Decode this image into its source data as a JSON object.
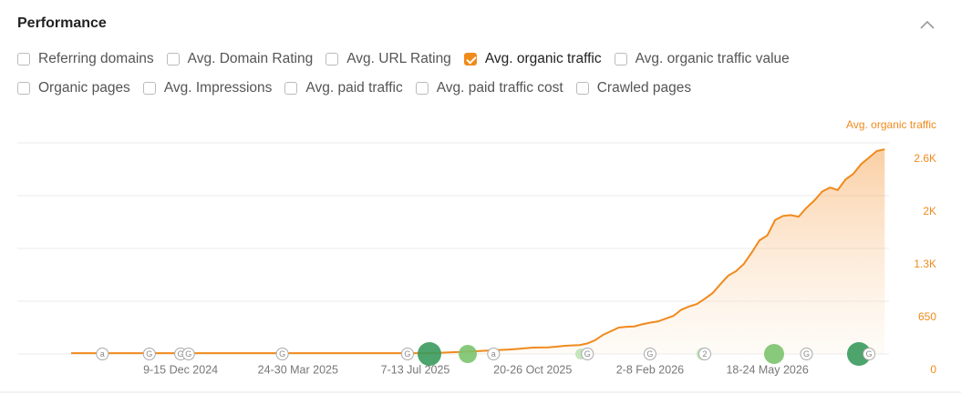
{
  "header": {
    "title": "Performance"
  },
  "metrics": [
    [
      {
        "label": "Referring domains",
        "checked": false
      },
      {
        "label": "Avg. Domain Rating",
        "checked": false
      },
      {
        "label": "Avg. URL Rating",
        "checked": false
      },
      {
        "label": "Avg. organic traffic",
        "checked": true
      },
      {
        "label": "Avg. organic traffic value",
        "checked": false
      }
    ],
    [
      {
        "label": "Organic pages",
        "checked": false
      },
      {
        "label": "Avg. Impressions",
        "checked": false
      },
      {
        "label": "Avg. paid traffic",
        "checked": false
      },
      {
        "label": "Avg. paid traffic cost",
        "checked": false
      },
      {
        "label": "Crawled pages",
        "checked": false
      }
    ]
  ],
  "chart_data": {
    "type": "area",
    "y_label": "Avg. organic traffic",
    "color": "#f08a1c",
    "grid": true,
    "ylim": [
      0,
      2600
    ],
    "yticks": [
      0,
      650,
      {
        "value": 1300,
        "label": "1.3K"
      },
      {
        "value": 1950,
        "label": "2K"
      },
      {
        "value": 2600,
        "label": "2.6K"
      }
    ],
    "categories": [
      null,
      null,
      null,
      null,
      null,
      null,
      null,
      null,
      null,
      null,
      null,
      null,
      null,
      null,
      "9-15 Dec 2024",
      null,
      null,
      null,
      null,
      null,
      null,
      null,
      null,
      null,
      null,
      null,
      null,
      null,
      null,
      "24-30 Mar 2025",
      null,
      null,
      null,
      null,
      null,
      null,
      null,
      null,
      null,
      null,
      null,
      null,
      null,
      null,
      "7-13 Jul 2025",
      null,
      null,
      null,
      null,
      null,
      null,
      null,
      null,
      null,
      null,
      null,
      null,
      null,
      null,
      "20-26 Oct 2025",
      null,
      null,
      null,
      null,
      null,
      null,
      null,
      null,
      null,
      null,
      null,
      null,
      null,
      null,
      "2-8 Feb 2026",
      null,
      null,
      null,
      null,
      null,
      null,
      null,
      null,
      null,
      null,
      null,
      null,
      null,
      null,
      "18-24 May 2026",
      null,
      null,
      null,
      null,
      null,
      null,
      null,
      null,
      null,
      null,
      null,
      null,
      null,
      null,
      null
    ],
    "values": [
      10,
      10,
      10,
      10,
      10,
      10,
      10,
      10,
      10,
      10,
      10,
      10,
      10,
      10,
      10,
      10,
      10,
      10,
      10,
      10,
      10,
      10,
      10,
      10,
      10,
      10,
      10,
      10,
      10,
      10,
      10,
      10,
      10,
      10,
      10,
      10,
      10,
      10,
      10,
      10,
      10,
      10,
      10,
      10,
      10,
      10,
      12,
      15,
      18,
      22,
      26,
      30,
      35,
      40,
      45,
      50,
      55,
      62,
      70,
      78,
      80,
      82,
      90,
      100,
      105,
      110,
      130,
      170,
      235,
      280,
      325,
      335,
      340,
      365,
      385,
      400,
      435,
      470,
      545,
      585,
      615,
      680,
      750,
      860,
      965,
      1020,
      1110,
      1250,
      1400,
      1460,
      1650,
      1700,
      1710,
      1690,
      1800,
      1890,
      2000,
      2050,
      2020,
      2150,
      2220,
      2340,
      2420,
      2500,
      2520
    ],
    "markers": [
      {
        "week": 4,
        "label": "a"
      },
      {
        "week": 10,
        "label": "G"
      },
      {
        "week": 14,
        "label": "G"
      },
      {
        "week": 15,
        "label": "G"
      },
      {
        "week": 27,
        "label": "G"
      },
      {
        "week": 43,
        "label": "G"
      },
      {
        "week": 54,
        "label": "a"
      },
      {
        "week": 66,
        "label": "G"
      },
      {
        "week": 74,
        "label": "G"
      },
      {
        "week": 81,
        "label": "2"
      },
      {
        "week": 94,
        "label": "G"
      },
      {
        "week": 102,
        "label": "G"
      }
    ]
  }
}
